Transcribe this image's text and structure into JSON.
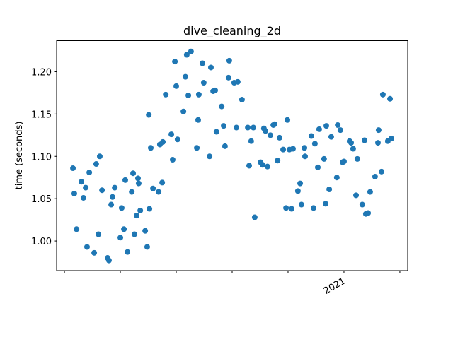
{
  "chart_data": {
    "type": "scatter",
    "title": "dive_cleaning_2d",
    "ylabel": "time (seconds)",
    "color": "#1f77b4",
    "grid": false,
    "xlim": [
      2019.715,
      2021.285
    ],
    "ylim": [
      0.965,
      1.2367
    ],
    "xticks": [
      {
        "value": 2019.75,
        "label": null
      },
      {
        "value": 2020,
        "label": null
      },
      {
        "value": 2020.25,
        "label": null
      },
      {
        "value": 2020.5,
        "label": null
      },
      {
        "value": 2020.75,
        "label": null
      },
      2021,
      {
        "value": 2021.25,
        "label": null
      }
    ],
    "yticks": [
      {
        "value": 1,
        "label": "1.00"
      },
      1.05,
      {
        "value": 1.1,
        "label": "1.10"
      },
      1.15,
      {
        "value": 1.2,
        "label": "1.20"
      }
    ],
    "x": [
      2019.788,
      2019.794,
      2019.804,
      2019.826,
      2019.835,
      2019.845,
      2019.851,
      2019.861,
      2019.883,
      2019.892,
      2019.902,
      2019.908,
      2019.918,
      2019.943,
      2019.949,
      2019.959,
      2019.965,
      2019.975,
      2020.0,
      2020.006,
      2020.016,
      2020.022,
      2020.032,
      2020.051,
      2020.057,
      2020.063,
      2020.073,
      2020.079,
      2020.082,
      2020.089,
      2020.111,
      2020.12,
      2020.127,
      2020.13,
      2020.136,
      2020.146,
      2020.171,
      2020.177,
      2020.187,
      2020.19,
      2020.203,
      2020.228,
      2020.234,
      2020.244,
      2020.25,
      2020.256,
      2020.282,
      2020.291,
      2020.297,
      2020.304,
      2020.316,
      2020.342,
      2020.348,
      2020.351,
      2020.367,
      2020.373,
      2020.399,
      2020.405,
      2020.415,
      2020.424,
      2020.43,
      2020.453,
      2020.462,
      2020.468,
      2020.484,
      2020.487,
      2020.509,
      2020.519,
      2020.525,
      2020.544,
      2020.57,
      2020.576,
      2020.585,
      2020.595,
      2020.601,
      2020.627,
      2020.636,
      2020.642,
      2020.649,
      2020.658,
      2020.671,
      2020.684,
      2020.69,
      2020.703,
      2020.712,
      2020.728,
      2020.741,
      2020.747,
      2020.756,
      2020.766,
      2020.772,
      2020.794,
      2020.804,
      2020.81,
      2020.823,
      2020.826,
      2020.854,
      2020.864,
      2020.87,
      2020.883,
      2020.889,
      2020.911,
      2020.918,
      2020.921,
      2020.934,
      2020.943,
      2020.968,
      2020.972,
      2020.984,
      2020.994,
      2021.0,
      2021.025,
      2021.032,
      2021.041,
      2021.054,
      2021.06,
      2021.082,
      2021.092,
      2021.098,
      2021.108,
      2021.117,
      2021.139,
      2021.152,
      2021.155,
      2021.168,
      2021.174,
      2021.196,
      2021.206,
      2021.212
    ],
    "values": [
      1.086,
      1.056,
      1.014,
      1.07,
      1.051,
      1.063,
      0.993,
      1.081,
      0.986,
      1.091,
      1.008,
      1.1,
      1.06,
      0.98,
      0.977,
      1.043,
      1.052,
      1.063,
      1.004,
      1.039,
      1.014,
      1.072,
      0.987,
      1.058,
      1.08,
      1.008,
      1.03,
      1.074,
      1.068,
      1.036,
      1.012,
      0.993,
      1.149,
      1.038,
      1.11,
      1.062,
      1.058,
      1.114,
      1.069,
      1.117,
      1.173,
      1.126,
      1.096,
      1.212,
      1.183,
      1.12,
      1.153,
      1.194,
      1.22,
      1.172,
      1.224,
      1.11,
      1.143,
      1.173,
      1.21,
      1.187,
      1.1,
      1.205,
      1.177,
      1.178,
      1.129,
      1.159,
      1.136,
      1.112,
      1.193,
      1.213,
      1.187,
      1.134,
      1.188,
      1.167,
      1.134,
      1.089,
      1.118,
      1.134,
      1.028,
      1.093,
      1.09,
      1.133,
      1.13,
      1.088,
      1.125,
      1.137,
      1.138,
      1.095,
      1.122,
      1.108,
      1.039,
      1.143,
      1.108,
      1.038,
      1.109,
      1.059,
      1.068,
      1.043,
      1.11,
      1.1,
      1.124,
      1.039,
      1.115,
      1.087,
      1.132,
      1.097,
      1.044,
      1.136,
      1.061,
      1.123,
      1.075,
      1.137,
      1.131,
      1.093,
      1.094,
      1.118,
      1.116,
      1.109,
      1.054,
      1.097,
      1.043,
      1.119,
      1.032,
      1.033,
      1.058,
      1.076,
      1.116,
      1.131,
      1.082,
      1.173,
      1.118,
      1.168,
      1.121
    ]
  }
}
